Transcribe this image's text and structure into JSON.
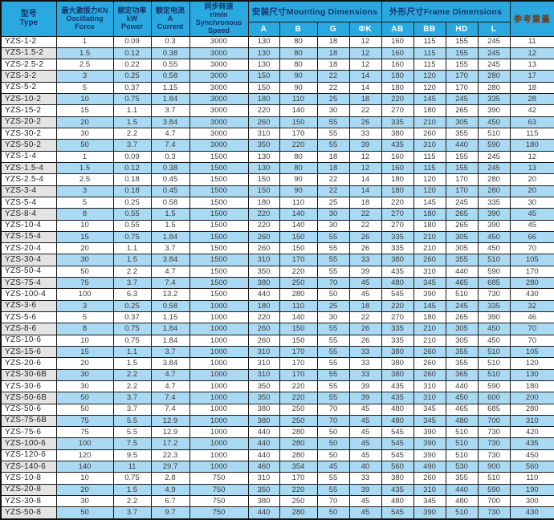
{
  "colors": {
    "header_bg": "#29a9e0",
    "header_text": "#17356b",
    "subheader_text": "#ffffff",
    "weight_header_text": "#703c24",
    "alt_row_bg": "#a9d9f3",
    "alt_type_cell_bg": "#e4e4e4",
    "grid_line": "#1b1b1b",
    "body_text": "#3c3c3c"
  },
  "table": {
    "headers": {
      "type": "型号\nType",
      "force": "最大激振力KN\nOscillating\nForce",
      "power": "额定功率\nkW\nPower",
      "current": "额定电流\nA\nCurrent",
      "speed": "同步转速\nr/min\nSynchronous\nSpeed",
      "mounting_group": "安装尺寸Mounting Dimensions",
      "frame_group": "外形尺寸Frame Dimensions",
      "weight": "参考重量"
    },
    "sub_headers": [
      "A",
      "B",
      "G",
      "ΦK",
      "AB",
      "BB",
      "HD",
      "L"
    ],
    "rows": [
      [
        "YZS-1-2",
        "1",
        "0.09",
        "0.3",
        "3000",
        "130",
        "80",
        "18",
        "12",
        "160",
        "115",
        "155",
        "245",
        "11"
      ],
      [
        "YZS-1.5-2",
        "1.5",
        "0.12",
        "0.38",
        "3000",
        "130",
        "80",
        "18",
        "12",
        "160",
        "115",
        "155",
        "245",
        "12"
      ],
      [
        "YZS-2.5-2",
        "2.5",
        "0.22",
        "0.55",
        "3000",
        "130",
        "80",
        "18",
        "12",
        "160",
        "115",
        "155",
        "245",
        "13"
      ],
      [
        "YZS-3-2",
        "3",
        "0.25",
        "0.58",
        "3000",
        "150",
        "90",
        "22",
        "14",
        "180",
        "120",
        "170",
        "280",
        "17"
      ],
      [
        "YZS-5-2",
        "5",
        "0.37",
        "1.15",
        "3000",
        "150",
        "90",
        "22",
        "14",
        "180",
        "120",
        "170",
        "280",
        "18"
      ],
      [
        "YZS-10-2",
        "10",
        "0.75",
        "1.84",
        "3000",
        "180",
        "110",
        "25",
        "18",
        "220",
        "145",
        "245",
        "335",
        "28"
      ],
      [
        "YZS-15-2",
        "15",
        "1.1",
        "3.7",
        "3000",
        "220",
        "140",
        "30",
        "22",
        "270",
        "180",
        "265",
        "390",
        "42"
      ],
      [
        "YZS-20-2",
        "20",
        "1.5",
        "3.84",
        "3000",
        "260",
        "150",
        "55",
        "26",
        "335",
        "210",
        "305",
        "450",
        "63"
      ],
      [
        "YZS-30-2",
        "30",
        "2.2",
        "4.7",
        "3000",
        "310",
        "170",
        "55",
        "33",
        "380",
        "260",
        "355",
        "510",
        "115"
      ],
      [
        "YZS-50-2",
        "50",
        "3.7",
        "7.4",
        "3000",
        "350",
        "220",
        "55",
        "39",
        "435",
        "310",
        "440",
        "590",
        "180"
      ],
      [
        "YZS-1-4",
        "1",
        "0.09",
        "0.3",
        "1500",
        "130",
        "80",
        "18",
        "12",
        "160",
        "115",
        "155",
        "245",
        "12"
      ],
      [
        "YZS-1.5-4",
        "1.5",
        "0.12",
        "0.38",
        "1500",
        "130",
        "80",
        "18",
        "12",
        "160",
        "115",
        "155",
        "245",
        "13"
      ],
      [
        "YZS-2.5-4",
        "2.5",
        "0.18",
        "0.45",
        "1500",
        "150",
        "90",
        "22",
        "14",
        "180",
        "120",
        "170",
        "280",
        "20"
      ],
      [
        "YZS-3-4",
        "3",
        "0.18",
        "0.45",
        "1500",
        "150",
        "90",
        "22",
        "14",
        "180",
        "120",
        "170",
        "280",
        "20"
      ],
      [
        "YZS-5-4",
        "5",
        "0.25",
        "0.58",
        "1500",
        "180",
        "110",
        "25",
        "18",
        "220",
        "145",
        "245",
        "335",
        "30"
      ],
      [
        "YZS-8-4",
        "8",
        "0.55",
        "1.5",
        "1500",
        "220",
        "140",
        "30",
        "22",
        "270",
        "180",
        "265",
        "390",
        "45"
      ],
      [
        "YZS-10-4",
        "10",
        "0.55",
        "1.5",
        "1500",
        "220",
        "140",
        "30",
        "22",
        "270",
        "180",
        "265",
        "390",
        "45"
      ],
      [
        "YZS-15-4",
        "15",
        "0.75",
        "1.84",
        "1500",
        "260",
        "150",
        "55",
        "26",
        "335",
        "210",
        "305",
        "450",
        "66"
      ],
      [
        "YZS-20-4",
        "20",
        "1.1",
        "3.7",
        "1500",
        "260",
        "150",
        "55",
        "26",
        "335",
        "210",
        "305",
        "450",
        "70"
      ],
      [
        "YZS-30-4",
        "30",
        "1.5",
        "3.84",
        "1500",
        "310",
        "170",
        "55",
        "33",
        "380",
        "260",
        "355",
        "510",
        "105"
      ],
      [
        "YZS-50-4",
        "50",
        "2.2",
        "4.7",
        "1500",
        "350",
        "220",
        "55",
        "39",
        "435",
        "310",
        "440",
        "590",
        "170"
      ],
      [
        "YZS-75-4",
        "75",
        "3.7",
        "7.4",
        "1500",
        "380",
        "250",
        "70",
        "45",
        "480",
        "345",
        "465",
        "685",
        "280"
      ],
      [
        "YZS-100-4",
        "100",
        "6.3",
        "13.2",
        "1500",
        "440",
        "280",
        "50",
        "45",
        "545",
        "390",
        "510",
        "730",
        "430"
      ],
      [
        "YZS-3-6",
        "3",
        "0.25",
        "0.58",
        "1000",
        "180",
        "110",
        "25",
        "18",
        "220",
        "145",
        "245",
        "335",
        "32"
      ],
      [
        "YZS-5-6",
        "5",
        "0.37",
        "1.15",
        "1000",
        "220",
        "140",
        "30",
        "22",
        "270",
        "180",
        "265",
        "390",
        "46"
      ],
      [
        "YZS-8-6",
        "8",
        "0.75",
        "1.84",
        "1000",
        "260",
        "150",
        "55",
        "26",
        "335",
        "210",
        "305",
        "450",
        "70"
      ],
      [
        "YZS-10-6",
        "10",
        "0.75",
        "1.84",
        "1000",
        "260",
        "150",
        "55",
        "26",
        "335",
        "210",
        "305",
        "450",
        "70"
      ],
      [
        "YZS-15-6",
        "15",
        "1.1",
        "3.7",
        "1000",
        "310",
        "170",
        "55",
        "33",
        "380",
        "260",
        "355",
        "510",
        "105"
      ],
      [
        "YZS-20-6",
        "20",
        "1.5",
        "3.84",
        "1000",
        "310",
        "170",
        "55",
        "33",
        "380",
        "260",
        "355",
        "510",
        "120"
      ],
      [
        "YZS-30-6B",
        "30",
        "2.2",
        "4.7",
        "1000",
        "310",
        "170",
        "55",
        "33",
        "380",
        "260",
        "365",
        "510",
        "130"
      ],
      [
        "YZS-30-6",
        "30",
        "2.2",
        "4.7",
        "1000",
        "350",
        "220",
        "55",
        "39",
        "435",
        "310",
        "440",
        "590",
        "180"
      ],
      [
        "YZS-50-6B",
        "50",
        "3.7",
        "7.4",
        "1000",
        "350",
        "220",
        "55",
        "39",
        "435",
        "310",
        "450",
        "600",
        "200"
      ],
      [
        "YZS-50-6",
        "50",
        "3.7",
        "7.4",
        "1000",
        "380",
        "250",
        "70",
        "45",
        "480",
        "345",
        "465",
        "685",
        "280"
      ],
      [
        "YZS-75-6B",
        "75",
        "5.5",
        "12.9",
        "1000",
        "380",
        "250",
        "70",
        "45",
        "480",
        "345",
        "480",
        "700",
        "310"
      ],
      [
        "YZS-75-6",
        "75",
        "5.5",
        "12.9",
        "1000",
        "440",
        "280",
        "50",
        "45",
        "545",
        "390",
        "510",
        "730",
        "420"
      ],
      [
        "YZS-100-6",
        "100",
        "7.5",
        "17.2",
        "1000",
        "440",
        "280",
        "50",
        "45",
        "545",
        "390",
        "510",
        "730",
        "435"
      ],
      [
        "YZS-120-6",
        "120",
        "9.5",
        "22.3",
        "1000",
        "440",
        "280",
        "50",
        "45",
        "545",
        "390",
        "510",
        "730",
        "450"
      ],
      [
        "YZS-140-6",
        "140",
        "11",
        "29.7",
        "1000",
        "460",
        "354",
        "45",
        "40",
        "560",
        "490",
        "530",
        "900",
        "560"
      ],
      [
        "YZS-10-8",
        "10",
        "0.75",
        "2.8",
        "750",
        "310",
        "170",
        "55",
        "33",
        "380",
        "260",
        "355",
        "510",
        "110"
      ],
      [
        "YZS-20-8",
        "20",
        "1.5",
        "4.9",
        "750",
        "350",
        "220",
        "55",
        "39",
        "435",
        "310",
        "440",
        "590",
        "190"
      ],
      [
        "YZS-30-8",
        "30",
        "2.2",
        "6.7",
        "750",
        "380",
        "250",
        "70",
        "45",
        "480",
        "345",
        "480",
        "700",
        "300"
      ],
      [
        "YZS-50-8",
        "50",
        "3.7",
        "9.7",
        "750",
        "440",
        "280",
        "50",
        "45",
        "545",
        "390",
        "510",
        "730",
        "430"
      ]
    ]
  }
}
